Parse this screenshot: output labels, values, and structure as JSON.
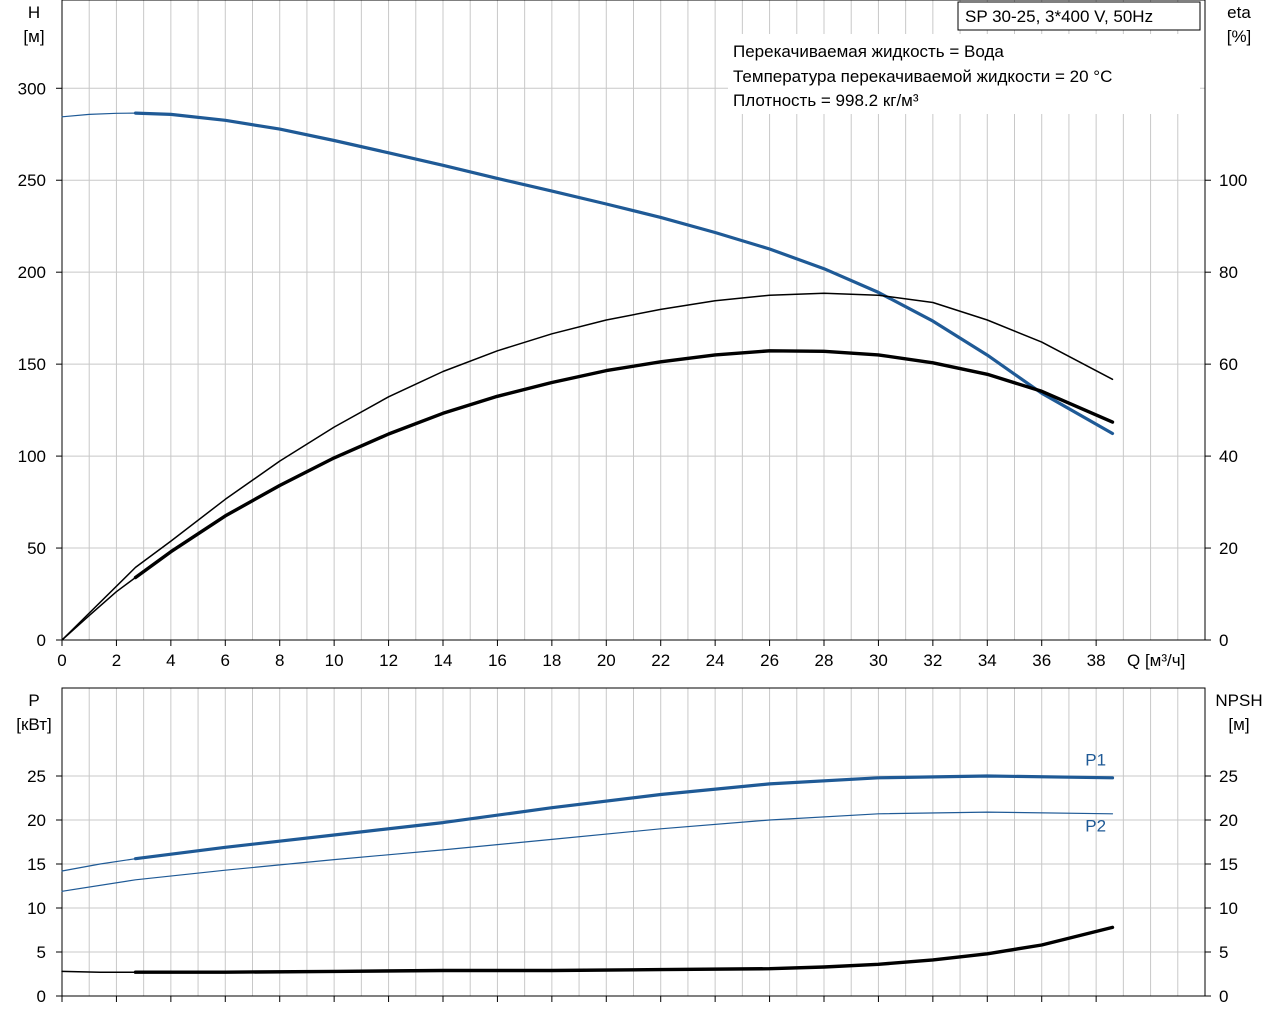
{
  "title_box": "SP 30-25, 3*400 V, 50Hz",
  "info_lines": [
    "Перекачиваемая жидкость = Вода",
    "Температура перекачиваемой жидкости = 20 °C",
    "Плотность = 998.2 кг/м³"
  ],
  "colors": {
    "blue": "#1f5a96",
    "black": "#000000",
    "grid": "#c8c8c8"
  },
  "chart_data": [
    {
      "type": "line",
      "panel": "top",
      "x_axis": {
        "label": "Q [м³/ч]",
        "range": [
          0,
          42
        ],
        "ticks": [
          0,
          2,
          4,
          6,
          8,
          10,
          12,
          14,
          16,
          18,
          20,
          22,
          24,
          26,
          28,
          30,
          32,
          34,
          36,
          38
        ]
      },
      "y_left": {
        "label_line1": "H",
        "label_line2": "[м]",
        "range": [
          0,
          348
        ],
        "ticks": [
          0,
          50,
          100,
          150,
          200,
          250,
          300
        ]
      },
      "y_right": {
        "label_line1": "eta",
        "label_line2": "[%]",
        "range": [
          0,
          139.2
        ],
        "ticks": [
          0,
          20,
          40,
          60,
          80,
          100
        ]
      },
      "grid": true,
      "series": [
        {
          "axis": "left",
          "style": "thin-blue",
          "x": [
            0,
            1,
            2,
            2.7
          ],
          "y": [
            284.5,
            285.8,
            286.4,
            286.5
          ]
        },
        {
          "axis": "left",
          "style": "thick-blue",
          "x": [
            2.7,
            4,
            6,
            8,
            10,
            12,
            14,
            16,
            18,
            20,
            22,
            24,
            26,
            28,
            30,
            32,
            34,
            36,
            38.6
          ],
          "y": [
            286.5,
            285.8,
            282.6,
            277.8,
            271.6,
            264.9,
            258.1,
            251,
            244.1,
            237.1,
            229.8,
            221.6,
            212.6,
            201.9,
            189,
            173.4,
            154.9,
            134.2,
            112.3
          ]
        },
        {
          "axis": "right",
          "style": "thin-black",
          "x": [
            0,
            1,
            2,
            2.7
          ],
          "y": [
            0,
            5.3,
            10.5,
            13.6
          ]
        },
        {
          "axis": "right",
          "style": "thick-black",
          "x": [
            2.7,
            4,
            6,
            8,
            10,
            12,
            14,
            16,
            18,
            20,
            22,
            24,
            26,
            28,
            30,
            32,
            34,
            36,
            38.6
          ],
          "y": [
            13.6,
            19.2,
            27,
            33.6,
            39.6,
            44.8,
            49.3,
            53,
            56,
            58.6,
            60.5,
            62,
            62.9,
            62.8,
            62,
            60.3,
            57.8,
            54.1,
            47.4
          ]
        },
        {
          "axis": "right",
          "style": "thin-black",
          "x": [
            0,
            2.7,
            4,
            6,
            8,
            10,
            12,
            14,
            16,
            18,
            20,
            22,
            24,
            26,
            28,
            30,
            32,
            34,
            36,
            38.6
          ],
          "y": [
            0,
            15.8,
            21.5,
            30.6,
            38.9,
            46.3,
            52.9,
            58.4,
            62.9,
            66.6,
            69.6,
            71.9,
            73.8,
            75,
            75.4,
            75,
            73.4,
            69.6,
            64.8,
            56.7
          ]
        }
      ]
    },
    {
      "type": "line",
      "panel": "bottom",
      "x_axis": {
        "range": [
          0,
          42
        ],
        "ticks": [
          0,
          2,
          4,
          6,
          8,
          10,
          12,
          14,
          16,
          18,
          20,
          22,
          24,
          26,
          28,
          30,
          32,
          34,
          36,
          38
        ]
      },
      "y_left": {
        "label_line1": "P",
        "label_line2": "[кВт]",
        "range": [
          0,
          35
        ],
        "ticks": [
          0,
          5,
          10,
          15,
          20,
          25
        ]
      },
      "y_right": {
        "label_line1": "NPSH",
        "label_line2": "[м]",
        "range": [
          0,
          35
        ],
        "ticks": [
          0,
          5,
          10,
          15,
          20,
          25
        ]
      },
      "grid": true,
      "series": [
        {
          "name": "P1",
          "axis": "left",
          "style": "thin-blue",
          "x": [
            0,
            1.4,
            2.7
          ],
          "y": [
            14.2,
            15,
            15.6
          ]
        },
        {
          "name": "P1",
          "axis": "left",
          "style": "thick-blue",
          "x": [
            2.7,
            6,
            10,
            14,
            18,
            22,
            26,
            30,
            34,
            38.6
          ],
          "y": [
            15.6,
            16.9,
            18.3,
            19.7,
            21.4,
            22.9,
            24.1,
            24.8,
            25,
            24.8
          ]
        },
        {
          "name": "P2",
          "axis": "left",
          "style": "thin-blue",
          "x": [
            0,
            2.7,
            6,
            10,
            14,
            18,
            22,
            26,
            30,
            34,
            38.6
          ],
          "y": [
            11.9,
            13.2,
            14.3,
            15.5,
            16.6,
            17.8,
            19,
            20,
            20.7,
            20.9,
            20.7
          ]
        },
        {
          "axis": "right",
          "style": "thin-black",
          "x": [
            0,
            1.4,
            2.7
          ],
          "y": [
            2.8,
            2.7,
            2.7
          ]
        },
        {
          "axis": "right",
          "style": "thick-black",
          "x": [
            2.7,
            6,
            10,
            14,
            18,
            22,
            26,
            28,
            30,
            32,
            34,
            36,
            38.6
          ],
          "y": [
            2.7,
            2.7,
            2.8,
            2.9,
            2.9,
            3,
            3.1,
            3.3,
            3.6,
            4.1,
            4.8,
            5.8,
            7.8
          ]
        }
      ],
      "labels": [
        {
          "text": "P1",
          "x": 37.6,
          "y": 26.2
        },
        {
          "text": "P2",
          "x": 37.6,
          "y": 18.7
        }
      ]
    }
  ]
}
